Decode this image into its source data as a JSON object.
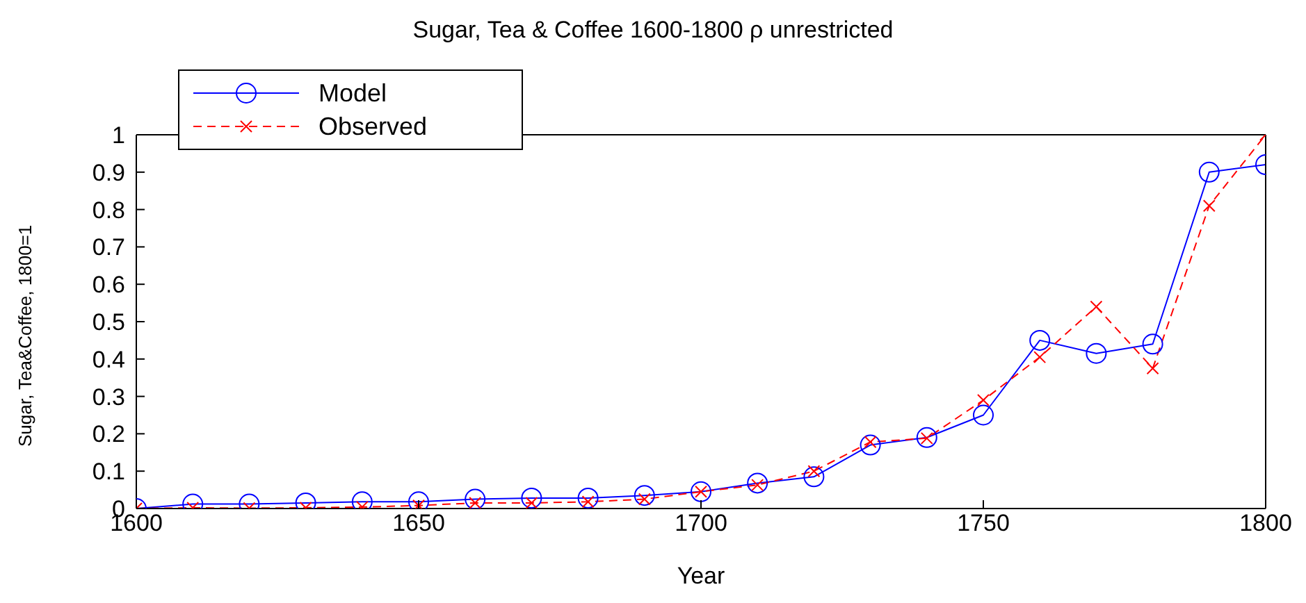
{
  "chart_data": {
    "type": "line",
    "title": "Sugar, Tea & Coffee 1600-1800 ρ unrestricted",
    "xlabel": "Year",
    "ylabel": "Sugar, Tea&Coffee, 1800=1",
    "x": [
      1600,
      1610,
      1620,
      1630,
      1640,
      1650,
      1660,
      1670,
      1680,
      1690,
      1700,
      1710,
      1720,
      1730,
      1740,
      1750,
      1760,
      1770,
      1780,
      1790,
      1800
    ],
    "series": [
      {
        "name": "Model",
        "color": "#0000ff",
        "marker": "circle",
        "line_style": "solid",
        "values": [
          0,
          0.012,
          0.012,
          0.015,
          0.018,
          0.018,
          0.025,
          0.028,
          0.028,
          0.035,
          0.045,
          0.068,
          0.085,
          0.17,
          0.19,
          0.25,
          0.45,
          0.415,
          0.44,
          0.9,
          0.92
        ]
      },
      {
        "name": "Observed",
        "color": "#ff0000",
        "marker": "cross",
        "line_style": "dashed",
        "values": [
          0,
          0.002,
          0.001,
          0.002,
          0.004,
          0.008,
          0.015,
          0.015,
          0.018,
          0.025,
          0.045,
          0.063,
          0.1,
          0.178,
          0.188,
          0.29,
          0.405,
          0.54,
          0.375,
          0.81,
          1.0
        ]
      }
    ],
    "xlim": [
      1600,
      1800
    ],
    "xticks": [
      1600,
      1650,
      1700,
      1750,
      1800
    ],
    "ylim": [
      0,
      1
    ],
    "yticks": [
      0,
      0.1,
      0.2,
      0.3,
      0.4,
      0.5,
      0.6,
      0.7,
      0.8,
      0.9,
      1
    ],
    "grid": false,
    "legend": "top left"
  }
}
